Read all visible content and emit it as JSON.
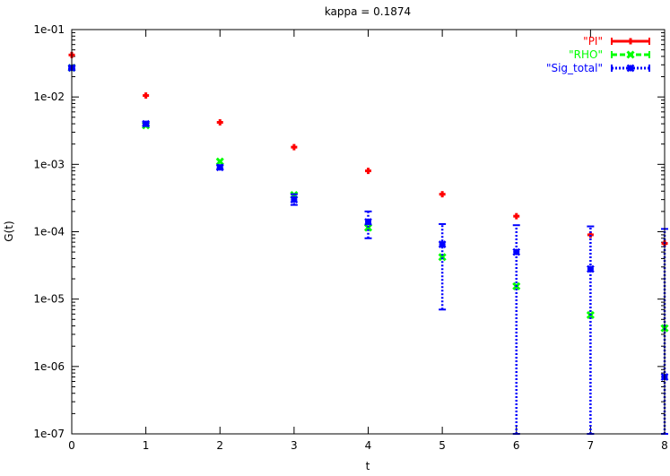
{
  "chart_data": {
    "type": "scatter",
    "title": "kappa = 0.1874",
    "xlabel": "t",
    "ylabel": "G(t)",
    "xlim": [
      0,
      8
    ],
    "ylim": [
      1e-07,
      0.1
    ],
    "yscale": "log",
    "x_ticks": [
      0,
      1,
      2,
      3,
      4,
      5,
      6,
      7,
      8
    ],
    "x_tick_labels": [
      "0",
      "1",
      "2",
      "3",
      "4",
      "5",
      "6",
      "7",
      "8"
    ],
    "y_ticks": [
      1e-07,
      1e-06,
      1e-05,
      0.0001,
      0.001,
      0.01,
      0.1
    ],
    "y_tick_labels": [
      "1e-07",
      "1e-06",
      "1e-05",
      "1e-04",
      "1e-03",
      "1e-02",
      "1e-01"
    ],
    "grid": false,
    "legend_position": "top-right",
    "series": [
      {
        "name": "\"PI\"",
        "color": "#ff0000",
        "marker": "plus",
        "line_style": "solid",
        "points": [
          {
            "x": 0,
            "y": 0.042
          },
          {
            "x": 1,
            "y": 0.0105
          },
          {
            "x": 2,
            "y": 0.0042
          },
          {
            "x": 3,
            "y": 0.0018
          },
          {
            "x": 4,
            "y": 0.0008
          },
          {
            "x": 5,
            "y": 0.00036
          },
          {
            "x": 6,
            "y": 0.00017
          },
          {
            "x": 7,
            "y": 9e-05
          },
          {
            "x": 8,
            "y": 6.7e-05
          }
        ]
      },
      {
        "name": "\"RHO\"",
        "color": "#00ff00",
        "marker": "cross",
        "line_style": "dashed",
        "points": [
          {
            "x": 0,
            "y": 0.027
          },
          {
            "x": 1,
            "y": 0.0038
          },
          {
            "x": 2,
            "y": 0.0011
          },
          {
            "x": 3,
            "y": 0.00035
          },
          {
            "x": 4,
            "y": 0.000115
          },
          {
            "x": 5,
            "y": 4.2e-05
          },
          {
            "x": 6,
            "y": 1.55e-05
          },
          {
            "x": 7,
            "y": 5.8e-06
          },
          {
            "x": 8,
            "y": 3.7e-06
          }
        ]
      },
      {
        "name": "\"Sig_total\"",
        "color": "#0000ff",
        "marker": "star",
        "line_style": "dotted",
        "points": [
          {
            "x": 0,
            "y": 0.027,
            "err_low": 0.026,
            "err_high": 0.028
          },
          {
            "x": 1,
            "y": 0.004,
            "err_low": 0.0038,
            "err_high": 0.0042
          },
          {
            "x": 2,
            "y": 0.0009,
            "err_low": 0.00085,
            "err_high": 0.00097
          },
          {
            "x": 3,
            "y": 0.0003,
            "err_low": 0.00025,
            "err_high": 0.00036
          },
          {
            "x": 4,
            "y": 0.00014,
            "err_low": 8e-05,
            "err_high": 0.0002
          },
          {
            "x": 5,
            "y": 6.5e-05,
            "err_low": 7e-06,
            "err_high": 0.00013
          },
          {
            "x": 6,
            "y": 5e-05,
            "err_low": 1e-07,
            "err_high": 0.000125
          },
          {
            "x": 7,
            "y": 2.8e-05,
            "err_low": 1e-07,
            "err_high": 0.00012
          },
          {
            "x": 8,
            "y": 7e-07,
            "err_low": 1e-07,
            "err_high": 0.00011
          }
        ]
      }
    ]
  }
}
